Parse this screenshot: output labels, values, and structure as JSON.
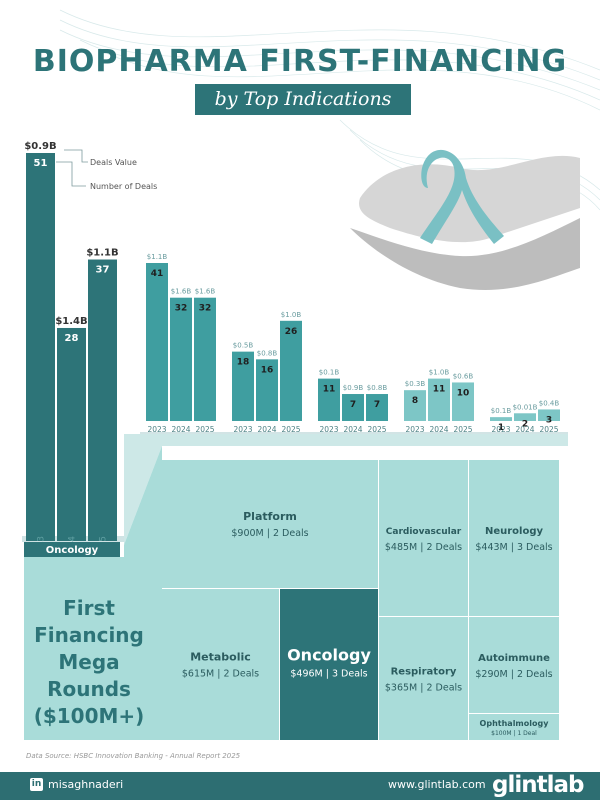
{
  "title": "BIOPHARMA FIRST-FINANCING",
  "subtitle": "by Top Indications",
  "legend": {
    "deals_value": "Deals Value",
    "number_of_deals": "Number of Deals"
  },
  "colors": {
    "teal_dark": "#2d7478",
    "teal_mid": "#3f9ea0",
    "teal_light": "#7dc6c6",
    "teal_pale": "#a9dcd9",
    "footer": "#2d6e72"
  },
  "chart_data": [
    {
      "type": "bar",
      "years": [
        "2023",
        "2024",
        "2025"
      ],
      "groups": [
        {
          "name": "Oncology",
          "values": [
            51,
            28,
            37
          ],
          "value_labels": [
            "$0.9B",
            "$1.4B",
            "$1.1B"
          ]
        },
        {
          "name": "Platform",
          "values": [
            41,
            32,
            32
          ],
          "value_labels": [
            "$1.1B",
            "$1.6B",
            "$1.6B"
          ]
        },
        {
          "name": "Neurology",
          "values": [
            18,
            16,
            26
          ],
          "value_labels": [
            "$0.5B",
            "$0.8B",
            "$1.0B"
          ]
        },
        {
          "name": "Metabolic",
          "values": [
            11,
            7,
            7
          ],
          "value_labels": [
            "$0.1B",
            "$0.9B",
            "$0.8B"
          ]
        },
        {
          "name": "Autoimmune",
          "values": [
            8,
            11,
            10
          ],
          "value_labels": [
            "$0.3B",
            "$1.0B",
            "$0.6B"
          ]
        },
        {
          "name": "Cardiovascular",
          "values": [
            1,
            2,
            3
          ],
          "value_labels": [
            "$0.1B",
            "$0.01B",
            "$0.4B"
          ]
        }
      ]
    },
    {
      "type": "treemap",
      "title": "First Financing Mega Rounds ($100M+)",
      "title_lines": [
        "First",
        "Financing",
        "Mega",
        "Rounds",
        "($100M+)"
      ],
      "items": [
        {
          "name": "Platform",
          "value": 900,
          "deals": 2,
          "label": "$900M | 2 Deals"
        },
        {
          "name": "Metabolic",
          "value": 615,
          "deals": 2,
          "label": "$615M | 2 Deals"
        },
        {
          "name": "Oncology",
          "value": 496,
          "deals": 3,
          "label": "$496M | 3 Deals"
        },
        {
          "name": "Cardiovascular",
          "value": 485,
          "deals": 2,
          "label": "$485M | 2 Deals"
        },
        {
          "name": "Neurology",
          "value": 443,
          "deals": 3,
          "label": "$443M | 3 Deals"
        },
        {
          "name": "Respiratory",
          "value": 365,
          "deals": 2,
          "label": "$365M | 2 Deals"
        },
        {
          "name": "Autoimmune",
          "value": 290,
          "deals": 2,
          "label": "$290M | 2 Deals"
        },
        {
          "name": "Ophthalmology",
          "value": 100,
          "deals": 1,
          "label": "$100M | 1 Deal"
        }
      ]
    }
  ],
  "source": "Data Source: HSBC Innovation Banking - Annual Report 2025",
  "footer": {
    "handle": "misaghnaderi",
    "site": "www.glintlab.com",
    "logo": "glintlab",
    "linkedin_icon": "linkedin-icon"
  }
}
